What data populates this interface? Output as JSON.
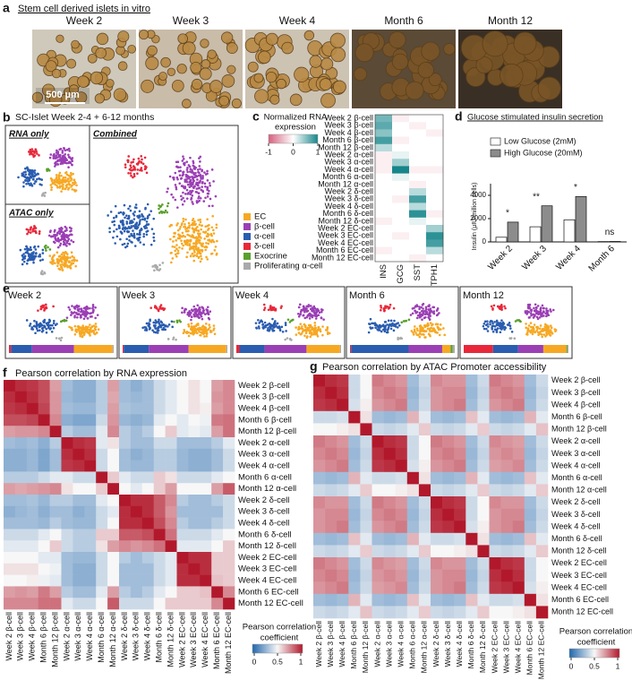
{
  "panel_a": {
    "label": "a",
    "title": "Stem cell derived islets in vitro",
    "timepoints": [
      "Week 2",
      "Week 3",
      "Week 4",
      "Month 6",
      "Month 12"
    ],
    "scale_bar": "500 µm"
  },
  "panel_b": {
    "label": "b",
    "title": "SC-Islet Week 2-4 + 6-12 months",
    "subplots": [
      "RNA only",
      "ATAC only",
      "Combined"
    ],
    "legend": [
      {
        "name": "EC",
        "color": "#f7a823"
      },
      {
        "name": "β-cell",
        "color": "#9b3fb5"
      },
      {
        "name": "α-cell",
        "color": "#2a5db0"
      },
      {
        "name": "δ-cell",
        "color": "#e8283a"
      },
      {
        "name": "Exocrine",
        "color": "#5aa02c"
      },
      {
        "name": "Proliferating α-cell",
        "color": "#aaaaaa"
      }
    ]
  },
  "panel_c": {
    "label": "c",
    "colorbar_title": [
      "Normalized RNA",
      "expression"
    ],
    "clim": [
      -1,
      1
    ],
    "colorbar_ticks": [
      -1,
      0,
      1
    ],
    "rows": [
      "Week 2 β-cell",
      "Week 3 β-cell",
      "Week 4 β-cell",
      "Month 6 β-cell",
      "Month 12 β-cell",
      "Week 2 α-cell",
      "Week 3 α-cell",
      "Week 4 α-cell",
      "Month 6 α-cell",
      "Month 12 α-cell",
      "Week 2 δ-cell",
      "Week 3 δ-cell",
      "Week 4 δ-cell",
      "Month 6 δ-cell",
      "Month 12 δ-cell",
      "Week 2 EC-cell",
      "Week 3 EC-cell",
      "Week 4 EC-cell",
      "Month 6 EC-cell",
      "Month 12 EC-cell"
    ],
    "columns": [
      "INS",
      "GCG",
      "SST",
      "TPH1"
    ],
    "values": [
      [
        0.6,
        -0.1,
        0,
        0
      ],
      [
        0.7,
        0,
        -0.1,
        0
      ],
      [
        0.5,
        0,
        0,
        -0.1
      ],
      [
        0.8,
        -0.1,
        0,
        0
      ],
      [
        0.3,
        0,
        0,
        0
      ],
      [
        -0.1,
        0.1,
        0,
        0
      ],
      [
        -0.1,
        0.4,
        0,
        0
      ],
      [
        -0.1,
        1,
        -0.1,
        -0.1
      ],
      [
        0,
        0.1,
        0,
        0
      ],
      [
        0,
        0,
        -0.1,
        0
      ],
      [
        0,
        0,
        0.3,
        0
      ],
      [
        0,
        -0.1,
        0.8,
        0
      ],
      [
        0,
        0,
        0.3,
        0
      ],
      [
        0,
        0,
        0.9,
        -0.1
      ],
      [
        -0.1,
        0,
        0.1,
        0
      ],
      [
        0,
        0,
        0,
        0.4
      ],
      [
        0,
        -0.1,
        0,
        0.9
      ],
      [
        0,
        0,
        0,
        0.8
      ],
      [
        -0.1,
        0,
        0,
        0.3
      ],
      [
        0,
        0,
        -0.1,
        0
      ]
    ]
  },
  "panel_d": {
    "label": "d",
    "title": "Glucose stimulated insulin secretion",
    "ylabel": "Insulin (µIU/million cells)",
    "categories": [
      "Week 2",
      "Week 3",
      "Week 4",
      "Month 6"
    ],
    "series": [
      {
        "name": "Low Glucose (2mM)",
        "color": "#ffffff",
        "values": [
          400,
          1300,
          1900,
          30
        ]
      },
      {
        "name": "High Glucose (20mM)",
        "color": "#8c8c8c",
        "values": [
          1700,
          3100,
          3900,
          40
        ]
      }
    ],
    "annotations": [
      "*",
      "**",
      "*",
      "ns"
    ],
    "ylim": [
      0,
      5000
    ],
    "yticks": [
      0,
      2000,
      4000
    ]
  },
  "panel_e": {
    "label": "e",
    "composition": [
      [
        37,
        40,
        20,
        2,
        0,
        1
      ],
      [
        36,
        38,
        24,
        1,
        0,
        1
      ],
      [
        32,
        40,
        24,
        3,
        0,
        1
      ],
      [
        8,
        32,
        55,
        1,
        2,
        2
      ],
      [
        22,
        24,
        24,
        28,
        1,
        1
      ]
    ]
  },
  "panel_f": {
    "label": "f",
    "title": "Pearson correlation by RNA expression",
    "colorbar_title": [
      "Pearson correlation",
      "coefficient"
    ],
    "clim": [
      0,
      1
    ],
    "colorbar_ticks": [
      0,
      0.5,
      1
    ],
    "values": [
      [
        1,
        0.95,
        0.93,
        0.88,
        0.7,
        0.3,
        0.25,
        0.25,
        0.35,
        0.7,
        0.3,
        0.25,
        0.3,
        0.4,
        0.45,
        0.5,
        0.55,
        0.5,
        0.7,
        0.75
      ],
      [
        0.95,
        1,
        0.95,
        0.88,
        0.72,
        0.28,
        0.25,
        0.25,
        0.35,
        0.68,
        0.3,
        0.28,
        0.3,
        0.4,
        0.45,
        0.5,
        0.55,
        0.5,
        0.72,
        0.75
      ],
      [
        0.93,
        0.95,
        1,
        0.9,
        0.72,
        0.3,
        0.28,
        0.28,
        0.35,
        0.7,
        0.32,
        0.3,
        0.3,
        0.4,
        0.45,
        0.5,
        0.55,
        0.52,
        0.7,
        0.75
      ],
      [
        0.88,
        0.88,
        0.9,
        1,
        0.75,
        0.25,
        0.22,
        0.22,
        0.4,
        0.72,
        0.28,
        0.25,
        0.28,
        0.45,
        0.5,
        0.45,
        0.5,
        0.48,
        0.78,
        0.8
      ],
      [
        0.7,
        0.72,
        0.72,
        0.75,
        1,
        0.35,
        0.3,
        0.3,
        0.45,
        0.75,
        0.35,
        0.3,
        0.35,
        0.5,
        0.6,
        0.45,
        0.48,
        0.45,
        0.7,
        0.8
      ],
      [
        0.3,
        0.28,
        0.3,
        0.25,
        0.35,
        1,
        0.95,
        0.93,
        0.45,
        0.55,
        0.35,
        0.3,
        0.3,
        0.4,
        0.4,
        0.3,
        0.3,
        0.3,
        0.35,
        0.45
      ],
      [
        0.25,
        0.25,
        0.28,
        0.22,
        0.3,
        0.95,
        1,
        0.95,
        0.4,
        0.5,
        0.3,
        0.25,
        0.28,
        0.35,
        0.35,
        0.28,
        0.25,
        0.25,
        0.3,
        0.4
      ],
      [
        0.25,
        0.25,
        0.28,
        0.22,
        0.3,
        0.93,
        0.95,
        1,
        0.4,
        0.5,
        0.3,
        0.28,
        0.28,
        0.35,
        0.35,
        0.28,
        0.25,
        0.25,
        0.3,
        0.4
      ],
      [
        0.35,
        0.35,
        0.35,
        0.4,
        0.45,
        0.45,
        0.4,
        0.4,
        1,
        0.6,
        0.45,
        0.4,
        0.4,
        0.6,
        0.55,
        0.4,
        0.4,
        0.4,
        0.45,
        0.5
      ],
      [
        0.7,
        0.68,
        0.7,
        0.72,
        0.75,
        0.55,
        0.5,
        0.5,
        0.6,
        1,
        0.5,
        0.45,
        0.5,
        0.6,
        0.7,
        0.5,
        0.5,
        0.5,
        0.7,
        0.85
      ],
      [
        0.3,
        0.3,
        0.32,
        0.28,
        0.35,
        0.35,
        0.3,
        0.3,
        0.45,
        0.5,
        1,
        0.95,
        0.95,
        0.85,
        0.75,
        0.35,
        0.3,
        0.3,
        0.35,
        0.4
      ],
      [
        0.25,
        0.28,
        0.3,
        0.25,
        0.3,
        0.3,
        0.25,
        0.28,
        0.4,
        0.45,
        0.95,
        1,
        0.95,
        0.85,
        0.72,
        0.3,
        0.3,
        0.3,
        0.3,
        0.4
      ],
      [
        0.3,
        0.3,
        0.3,
        0.28,
        0.35,
        0.3,
        0.28,
        0.28,
        0.4,
        0.5,
        0.95,
        0.95,
        1,
        0.88,
        0.75,
        0.35,
        0.3,
        0.3,
        0.35,
        0.4
      ],
      [
        0.4,
        0.4,
        0.4,
        0.45,
        0.5,
        0.4,
        0.35,
        0.35,
        0.6,
        0.6,
        0.85,
        0.85,
        0.88,
        1,
        0.8,
        0.4,
        0.4,
        0.4,
        0.45,
        0.5
      ],
      [
        0.45,
        0.45,
        0.45,
        0.5,
        0.6,
        0.4,
        0.35,
        0.35,
        0.55,
        0.7,
        0.75,
        0.72,
        0.75,
        0.8,
        1,
        0.45,
        0.45,
        0.45,
        0.5,
        0.6
      ],
      [
        0.5,
        0.5,
        0.5,
        0.45,
        0.45,
        0.3,
        0.28,
        0.28,
        0.4,
        0.5,
        0.35,
        0.3,
        0.35,
        0.4,
        0.45,
        1,
        0.95,
        0.95,
        0.6,
        0.6
      ],
      [
        0.55,
        0.55,
        0.55,
        0.5,
        0.48,
        0.3,
        0.25,
        0.25,
        0.4,
        0.5,
        0.3,
        0.3,
        0.3,
        0.4,
        0.45,
        0.95,
        1,
        0.95,
        0.6,
        0.6
      ],
      [
        0.5,
        0.5,
        0.52,
        0.48,
        0.45,
        0.3,
        0.25,
        0.25,
        0.4,
        0.5,
        0.3,
        0.3,
        0.3,
        0.4,
        0.45,
        0.95,
        0.95,
        1,
        0.62,
        0.6
      ],
      [
        0.7,
        0.72,
        0.7,
        0.78,
        0.7,
        0.35,
        0.3,
        0.3,
        0.45,
        0.7,
        0.35,
        0.3,
        0.35,
        0.45,
        0.5,
        0.6,
        0.6,
        0.62,
        1,
        0.75
      ],
      [
        0.75,
        0.75,
        0.75,
        0.8,
        0.8,
        0.45,
        0.4,
        0.4,
        0.5,
        0.85,
        0.4,
        0.4,
        0.4,
        0.5,
        0.6,
        0.6,
        0.6,
        0.6,
        0.75,
        1
      ]
    ]
  },
  "panel_g": {
    "label": "g",
    "title": "Pearson correlation by ATAC Promoter accessibility",
    "colorbar_title": [
      "Pearson correlation",
      "coefficient"
    ],
    "clim": [
      0,
      1
    ],
    "colorbar_ticks": [
      0,
      0.5,
      1
    ],
    "values": [
      [
        1,
        0.95,
        0.93,
        0.4,
        0.5,
        0.78,
        0.75,
        0.72,
        0.3,
        0.4,
        0.75,
        0.72,
        0.72,
        0.3,
        0.4,
        0.78,
        0.75,
        0.72,
        0.3,
        0.4
      ],
      [
        0.95,
        1,
        0.95,
        0.4,
        0.5,
        0.75,
        0.78,
        0.75,
        0.28,
        0.38,
        0.72,
        0.75,
        0.75,
        0.28,
        0.38,
        0.75,
        0.78,
        0.75,
        0.28,
        0.38
      ],
      [
        0.93,
        0.95,
        1,
        0.42,
        0.52,
        0.72,
        0.75,
        0.78,
        0.3,
        0.4,
        0.72,
        0.75,
        0.78,
        0.3,
        0.4,
        0.72,
        0.75,
        0.78,
        0.3,
        0.4
      ],
      [
        0.4,
        0.4,
        0.42,
        1,
        0.55,
        0.3,
        0.28,
        0.3,
        0.65,
        0.45,
        0.3,
        0.28,
        0.3,
        0.62,
        0.45,
        0.3,
        0.28,
        0.3,
        0.65,
        0.45
      ],
      [
        0.5,
        0.5,
        0.52,
        0.55,
        1,
        0.4,
        0.38,
        0.4,
        0.45,
        0.6,
        0.4,
        0.38,
        0.4,
        0.45,
        0.6,
        0.4,
        0.38,
        0.4,
        0.45,
        0.62
      ],
      [
        0.78,
        0.75,
        0.72,
        0.3,
        0.4,
        1,
        0.95,
        0.93,
        0.4,
        0.5,
        0.78,
        0.75,
        0.72,
        0.3,
        0.4,
        0.75,
        0.72,
        0.7,
        0.3,
        0.4
      ],
      [
        0.75,
        0.78,
        0.75,
        0.28,
        0.38,
        0.95,
        1,
        0.95,
        0.4,
        0.5,
        0.75,
        0.78,
        0.75,
        0.28,
        0.38,
        0.72,
        0.75,
        0.72,
        0.28,
        0.38
      ],
      [
        0.72,
        0.75,
        0.78,
        0.3,
        0.4,
        0.93,
        0.95,
        1,
        0.42,
        0.52,
        0.72,
        0.75,
        0.78,
        0.3,
        0.4,
        0.7,
        0.72,
        0.75,
        0.3,
        0.4
      ],
      [
        0.3,
        0.28,
        0.3,
        0.65,
        0.45,
        0.4,
        0.4,
        0.42,
        1,
        0.55,
        0.3,
        0.28,
        0.3,
        0.65,
        0.45,
        0.3,
        0.28,
        0.3,
        0.62,
        0.45
      ],
      [
        0.4,
        0.38,
        0.4,
        0.45,
        0.6,
        0.5,
        0.5,
        0.52,
        0.55,
        1,
        0.4,
        0.38,
        0.4,
        0.45,
        0.6,
        0.4,
        0.38,
        0.4,
        0.45,
        0.6
      ],
      [
        0.75,
        0.72,
        0.72,
        0.3,
        0.4,
        0.78,
        0.75,
        0.72,
        0.3,
        0.4,
        1,
        0.95,
        0.93,
        0.4,
        0.5,
        0.75,
        0.72,
        0.72,
        0.3,
        0.4
      ],
      [
        0.72,
        0.75,
        0.75,
        0.28,
        0.38,
        0.75,
        0.78,
        0.75,
        0.28,
        0.38,
        0.95,
        1,
        0.95,
        0.4,
        0.5,
        0.72,
        0.75,
        0.75,
        0.28,
        0.38
      ],
      [
        0.72,
        0.75,
        0.78,
        0.3,
        0.4,
        0.72,
        0.75,
        0.78,
        0.3,
        0.4,
        0.93,
        0.95,
        1,
        0.42,
        0.52,
        0.72,
        0.75,
        0.78,
        0.3,
        0.4
      ],
      [
        0.3,
        0.28,
        0.3,
        0.62,
        0.45,
        0.3,
        0.28,
        0.3,
        0.65,
        0.45,
        0.4,
        0.4,
        0.42,
        1,
        0.55,
        0.3,
        0.28,
        0.3,
        0.62,
        0.45
      ],
      [
        0.4,
        0.38,
        0.4,
        0.45,
        0.6,
        0.4,
        0.38,
        0.4,
        0.45,
        0.6,
        0.5,
        0.5,
        0.52,
        0.55,
        1,
        0.4,
        0.38,
        0.4,
        0.45,
        0.6
      ],
      [
        0.78,
        0.75,
        0.72,
        0.3,
        0.4,
        0.75,
        0.72,
        0.7,
        0.3,
        0.4,
        0.75,
        0.72,
        0.72,
        0.3,
        0.4,
        1,
        0.95,
        0.93,
        0.4,
        0.5
      ],
      [
        0.75,
        0.78,
        0.75,
        0.28,
        0.38,
        0.72,
        0.75,
        0.72,
        0.28,
        0.38,
        0.72,
        0.75,
        0.75,
        0.28,
        0.38,
        0.95,
        1,
        0.95,
        0.4,
        0.5
      ],
      [
        0.72,
        0.75,
        0.78,
        0.3,
        0.4,
        0.7,
        0.72,
        0.75,
        0.3,
        0.4,
        0.72,
        0.75,
        0.78,
        0.3,
        0.4,
        0.93,
        0.95,
        1,
        0.42,
        0.52
      ],
      [
        0.3,
        0.28,
        0.3,
        0.65,
        0.45,
        0.3,
        0.28,
        0.3,
        0.62,
        0.45,
        0.3,
        0.28,
        0.3,
        0.62,
        0.45,
        0.4,
        0.4,
        0.42,
        1,
        0.55
      ],
      [
        0.4,
        0.38,
        0.4,
        0.45,
        0.62,
        0.4,
        0.38,
        0.4,
        0.45,
        0.6,
        0.4,
        0.38,
        0.4,
        0.45,
        0.6,
        0.5,
        0.5,
        0.52,
        0.55,
        1
      ]
    ]
  }
}
